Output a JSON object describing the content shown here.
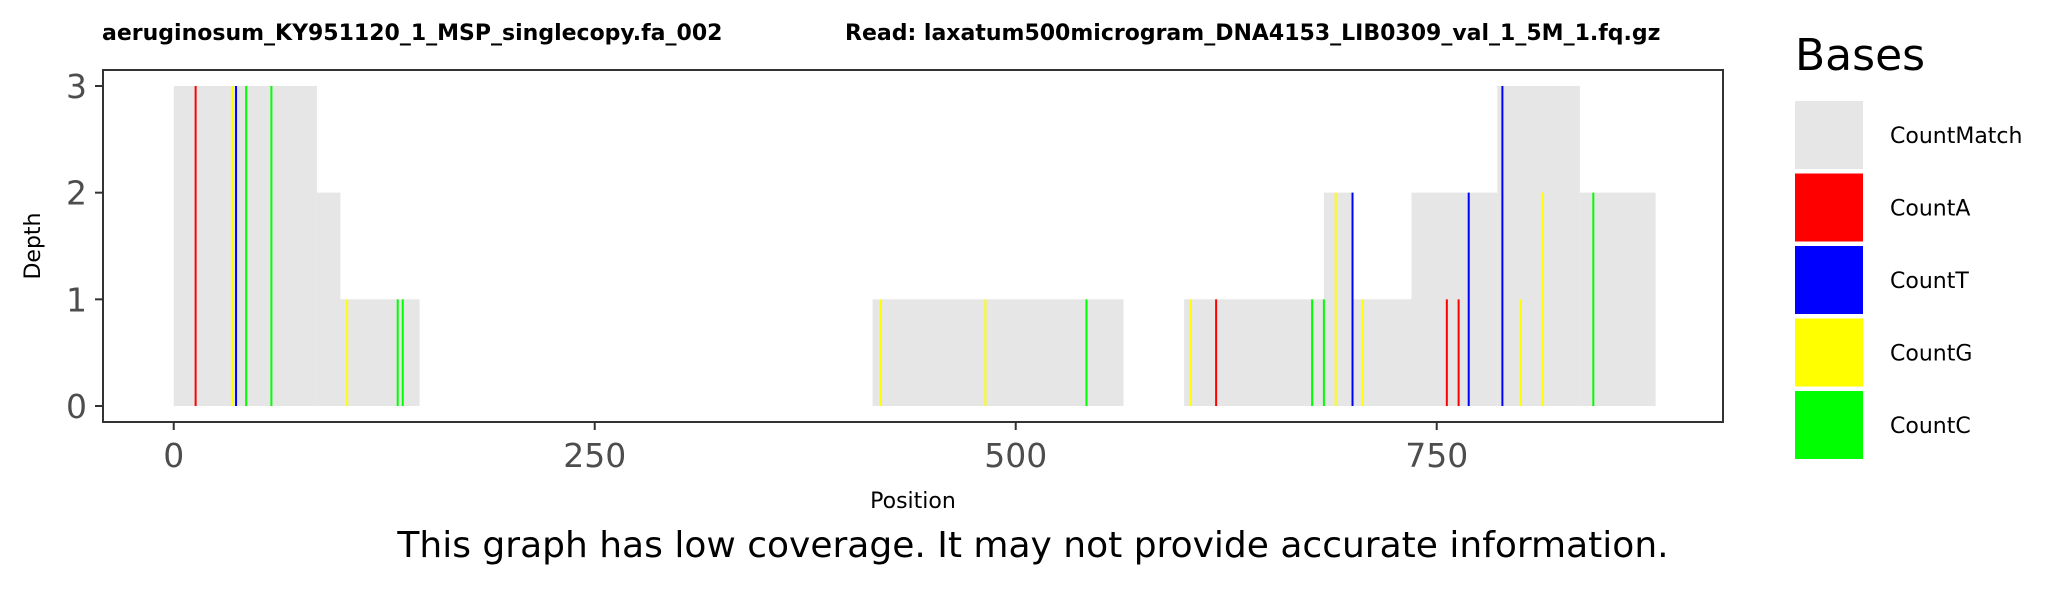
{
  "chart_data": {
    "type": "area",
    "title_left": "aeruginosum_KY951120_1_MSP_singlecopy.fa_002",
    "title_right": "Read: laxatum500microgram_DNA4153_LIB0309_val_1_5M_1.fq.gz",
    "xlabel": "Position",
    "ylabel": "Depth",
    "xlim": [
      -42,
      920
    ],
    "ylim": [
      -0.15,
      3.15
    ],
    "x_ticks": [
      0,
      250,
      500,
      750
    ],
    "y_ticks": [
      0,
      1,
      2,
      3
    ],
    "grid": false,
    "legend_position": "right",
    "legend_title": "Bases",
    "legend": [
      {
        "name": "CountMatch",
        "color": "#e6e6e6"
      },
      {
        "name": "CountA",
        "color": "#ff0000"
      },
      {
        "name": "CountT",
        "color": "#0000ff"
      },
      {
        "name": "CountG",
        "color": "#ffff00"
      },
      {
        "name": "CountC",
        "color": "#00ff00"
      }
    ],
    "coverage": [
      {
        "start": 0,
        "end": 85,
        "depth": 3
      },
      {
        "start": 85,
        "end": 99,
        "depth": 2
      },
      {
        "start": 99,
        "end": 146,
        "depth": 1
      },
      {
        "start": 415,
        "end": 564,
        "depth": 1
      },
      {
        "start": 600,
        "end": 683,
        "depth": 1
      },
      {
        "start": 683,
        "end": 700,
        "depth": 2
      },
      {
        "start": 700,
        "end": 735,
        "depth": 1
      },
      {
        "start": 735,
        "end": 786,
        "depth": 2
      },
      {
        "start": 786,
        "end": 835,
        "depth": 3
      },
      {
        "start": 835,
        "end": 880,
        "depth": 2
      }
    ],
    "mismatches": [
      {
        "x": 13,
        "base": "A",
        "depth": 3
      },
      {
        "x": 35,
        "base": "G",
        "depth": 3
      },
      {
        "x": 37,
        "base": "T",
        "depth": 3
      },
      {
        "x": 43,
        "base": "C",
        "depth": 3
      },
      {
        "x": 58,
        "base": "C",
        "depth": 3
      },
      {
        "x": 103,
        "base": "G",
        "depth": 1
      },
      {
        "x": 133,
        "base": "C",
        "depth": 1
      },
      {
        "x": 136,
        "base": "C",
        "depth": 1
      },
      {
        "x": 420,
        "base": "G",
        "depth": 1
      },
      {
        "x": 482,
        "base": "G",
        "depth": 1
      },
      {
        "x": 542,
        "base": "C",
        "depth": 1
      },
      {
        "x": 604,
        "base": "G",
        "depth": 1
      },
      {
        "x": 619,
        "base": "A",
        "depth": 1
      },
      {
        "x": 676,
        "base": "C",
        "depth": 1
      },
      {
        "x": 683,
        "base": "C",
        "depth": 1
      },
      {
        "x": 690,
        "base": "G",
        "depth": 2
      },
      {
        "x": 700,
        "base": "T",
        "depth": 2
      },
      {
        "x": 706,
        "base": "G",
        "depth": 1
      },
      {
        "x": 756,
        "base": "A",
        "depth": 1
      },
      {
        "x": 763,
        "base": "A",
        "depth": 1
      },
      {
        "x": 769,
        "base": "T",
        "depth": 2
      },
      {
        "x": 789,
        "base": "T",
        "depth": 3
      },
      {
        "x": 800,
        "base": "G",
        "depth": 1
      },
      {
        "x": 813,
        "base": "G",
        "depth": 2
      },
      {
        "x": 843,
        "base": "C",
        "depth": 2
      }
    ]
  },
  "footer": {
    "warning": "This graph has low coverage. It may not provide accurate information."
  }
}
